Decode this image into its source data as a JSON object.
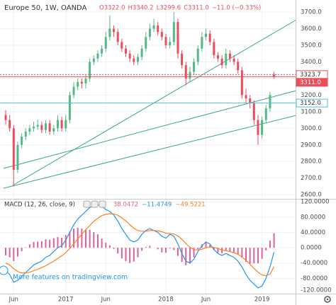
{
  "chart_data": [
    {
      "type": "candlestick",
      "title": "Europe 50, 1W, OANDA",
      "ohlc_legend": [
        "O3322.0",
        "H3340.2",
        "L3299.6",
        "C3311.0",
        "−11.0 (−0.33%)"
      ],
      "categories": [
        null,
        null,
        "Jun",
        null,
        null,
        null,
        null,
        null,
        null,
        null,
        null,
        null,
        null,
        null,
        null,
        "2017",
        null,
        null,
        null,
        null,
        null,
        null,
        null,
        null,
        null,
        "Jun",
        null,
        null,
        null,
        null,
        null,
        null,
        null,
        null,
        null,
        null,
        null,
        null,
        null,
        null,
        "2018",
        null,
        null,
        null,
        null,
        null,
        null,
        null,
        null,
        null,
        "Jun",
        null,
        null,
        null,
        null,
        null,
        null,
        null,
        null,
        null,
        null,
        null,
        null,
        null,
        "2019",
        null,
        null,
        null
      ],
      "open": [
        3080,
        3050,
        3000,
        2750,
        2900,
        2950,
        2980,
        3000,
        3010,
        3020,
        2990,
        3030,
        2980,
        3000,
        3050,
        3000,
        3050,
        3200,
        3250,
        3280,
        3270,
        3300,
        3400,
        3420,
        3450,
        3480,
        3550,
        3600,
        3580,
        3520,
        3480,
        3450,
        3420,
        3400,
        3430,
        3480,
        3550,
        3600,
        3620,
        3580,
        3550,
        3500,
        3520,
        3640,
        3450,
        3380,
        3300,
        3340,
        3400,
        3480,
        3550,
        3570,
        3520,
        3440,
        3420,
        3380,
        3450,
        3420,
        3400,
        3350,
        3200,
        3180,
        3150,
        3050,
        2960,
        3050,
        3120,
        3322
      ],
      "high": [
        3110,
        3080,
        3020,
        2920,
        2970,
        3000,
        3020,
        3040,
        3050,
        3040,
        3050,
        3050,
        3020,
        3080,
        3070,
        3080,
        3220,
        3280,
        3300,
        3300,
        3320,
        3420,
        3440,
        3470,
        3500,
        3580,
        3680,
        3620,
        3600,
        3540,
        3500,
        3470,
        3440,
        3450,
        3500,
        3580,
        3630,
        3660,
        3640,
        3600,
        3570,
        3550,
        3700,
        3660,
        3470,
        3400,
        3370,
        3420,
        3500,
        3580,
        3600,
        3590,
        3540,
        3460,
        3440,
        3480,
        3470,
        3440,
        3420,
        3370,
        3240,
        3200,
        3170,
        3080,
        3070,
        3140,
        3220,
        3340.2
      ],
      "low": [
        3020,
        2980,
        2650,
        2730,
        2880,
        2930,
        2960,
        2980,
        2990,
        2970,
        2970,
        2960,
        2960,
        2980,
        2980,
        2980,
        3030,
        3180,
        3230,
        3240,
        3240,
        3280,
        3380,
        3400,
        3430,
        3460,
        3530,
        3550,
        3500,
        3460,
        3430,
        3400,
        3380,
        3380,
        3410,
        3460,
        3530,
        3580,
        3560,
        3530,
        3480,
        3480,
        3500,
        3420,
        3360,
        3260,
        3280,
        3320,
        3380,
        3460,
        3530,
        3500,
        3420,
        3400,
        3360,
        3360,
        3400,
        3380,
        3330,
        3180,
        3150,
        3120,
        3020,
        2900,
        2940,
        3030,
        3100,
        3299.6
      ],
      "close": [
        3050,
        3000,
        2750,
        2900,
        2950,
        2980,
        3000,
        3010,
        3020,
        2990,
        3030,
        2980,
        3000,
        3050,
        3000,
        3050,
        3200,
        3250,
        3280,
        3270,
        3300,
        3400,
        3420,
        3450,
        3480,
        3550,
        3600,
        3580,
        3520,
        3480,
        3450,
        3420,
        3400,
        3430,
        3480,
        3550,
        3600,
        3620,
        3580,
        3550,
        3500,
        3520,
        3640,
        3450,
        3380,
        3300,
        3340,
        3400,
        3480,
        3550,
        3570,
        3520,
        3440,
        3420,
        3380,
        3450,
        3420,
        3400,
        3350,
        3200,
        3180,
        3150,
        3050,
        2960,
        3050,
        3120,
        3200,
        3311
      ],
      "up_color": "#53b987",
      "down_color": "#eb4d5c",
      "ylim": [
        2575,
        3760
      ],
      "yticks": [
        {
          "value": 2600,
          "label": "2600.0"
        },
        {
          "value": 2700,
          "label": "2700.0"
        },
        {
          "value": 2800,
          "label": "2800.0"
        },
        {
          "value": 2900,
          "label": "2900.0"
        },
        {
          "value": 3000,
          "label": "3000.0"
        },
        {
          "value": 3100,
          "label": "3100.0"
        },
        {
          "value": 3200,
          "label": "3200.0"
        },
        {
          "value": 3300,
          "label": "3300.0"
        },
        {
          "value": 3400,
          "label": "3400.0"
        },
        {
          "value": 3500,
          "label": "3500.0"
        },
        {
          "value": 3600,
          "label": "3600.0"
        },
        {
          "value": 3700,
          "label": "3700.0"
        }
      ],
      "price_lines": {
        "values": [
          3323.7,
          3311,
          3152
        ],
        "value_labels": [
          "3323.7",
          "3311.0",
          "3152.0"
        ],
        "colors": [
          "#eb4d5c",
          "#eb4d5c",
          "#4fc3d9"
        ]
      },
      "grid": true
    },
    {
      "type": "macd",
      "title": "MACD (12, 26, close, 9)",
      "legend_values": [
        "38.0472",
        "−11.4749",
        "−49.5221"
      ],
      "series": [
        {
          "color": "#e0609a",
          "values": [
            -20,
            -25,
            -35,
            -23,
            -9,
            1,
            9,
            15,
            16,
            17,
            22,
            21,
            25,
            28,
            26,
            33,
            42,
            50,
            52,
            50,
            48,
            47,
            41,
            35,
            24,
            13,
            6,
            -3,
            -15,
            -28,
            -35,
            -40,
            -36,
            -25,
            -8,
            2,
            5,
            0,
            -4,
            -12,
            -13,
            -2,
            -6,
            -21,
            -37,
            -46,
            -41,
            -25,
            -4,
            9,
            15,
            8,
            -6,
            -13,
            -14,
            -7,
            -10,
            -12,
            -18,
            -26,
            -37,
            -42,
            -41,
            -41,
            -29,
            -7,
            19,
            38.0472
          ]
        },
        {
          "color": "#2196f3",
          "values": [
            -60,
            -70,
            -90,
            -85,
            -75,
            -65,
            -55,
            -45,
            -40,
            -35,
            -25,
            -20,
            -10,
            0,
            5,
            20,
            40,
            60,
            75,
            85,
            95,
            105,
            110,
            112,
            108,
            100,
            95,
            85,
            70,
            50,
            35,
            20,
            15,
            20,
            35,
            45,
            50,
            45,
            40,
            30,
            25,
            35,
            30,
            10,
            -15,
            -35,
            -40,
            -30,
            -10,
            5,
            15,
            10,
            -5,
            -15,
            -20,
            -15,
            -20,
            -25,
            -35,
            -50,
            -70,
            -85,
            -95,
            -105,
            -100,
            -80,
            -50,
            -11.4749
          ]
        },
        {
          "color": "#ff7f1f",
          "values": [
            -40,
            -45,
            -55,
            -62,
            -66,
            -66,
            -64,
            -60,
            -56,
            -52,
            -47,
            -41,
            -35,
            -28,
            -21,
            -13,
            -2,
            10,
            23,
            35,
            47,
            58,
            69,
            77,
            84,
            87,
            89,
            88,
            85,
            78,
            70,
            60,
            51,
            45,
            43,
            43,
            45,
            45,
            44,
            42,
            38,
            37,
            36,
            31,
            22,
            11,
            1,
            -5,
            -6,
            -4,
            0,
            2,
            1,
            -2,
            -6,
            -8,
            -10,
            -13,
            -17,
            -24,
            -33,
            -43,
            -54,
            -64,
            -71,
            -73,
            -69,
            -49.5221
          ]
        }
      ],
      "ylim": [
        -120,
        124
      ],
      "yticks": [
        {
          "value": 120,
          "label": "120.0000"
        },
        {
          "value": 80,
          "label": "80.0000"
        },
        {
          "value": 40,
          "label": "40.0000"
        },
        {
          "value": 0,
          "label": "0.0000"
        },
        {
          "value": -40,
          "label": "-40.0000"
        },
        {
          "value": -80,
          "label": "-80.0000"
        },
        {
          "value": -120,
          "label": "-120.0000"
        }
      ],
      "grid": true
    }
  ],
  "banner": "More features on tradingview.com"
}
